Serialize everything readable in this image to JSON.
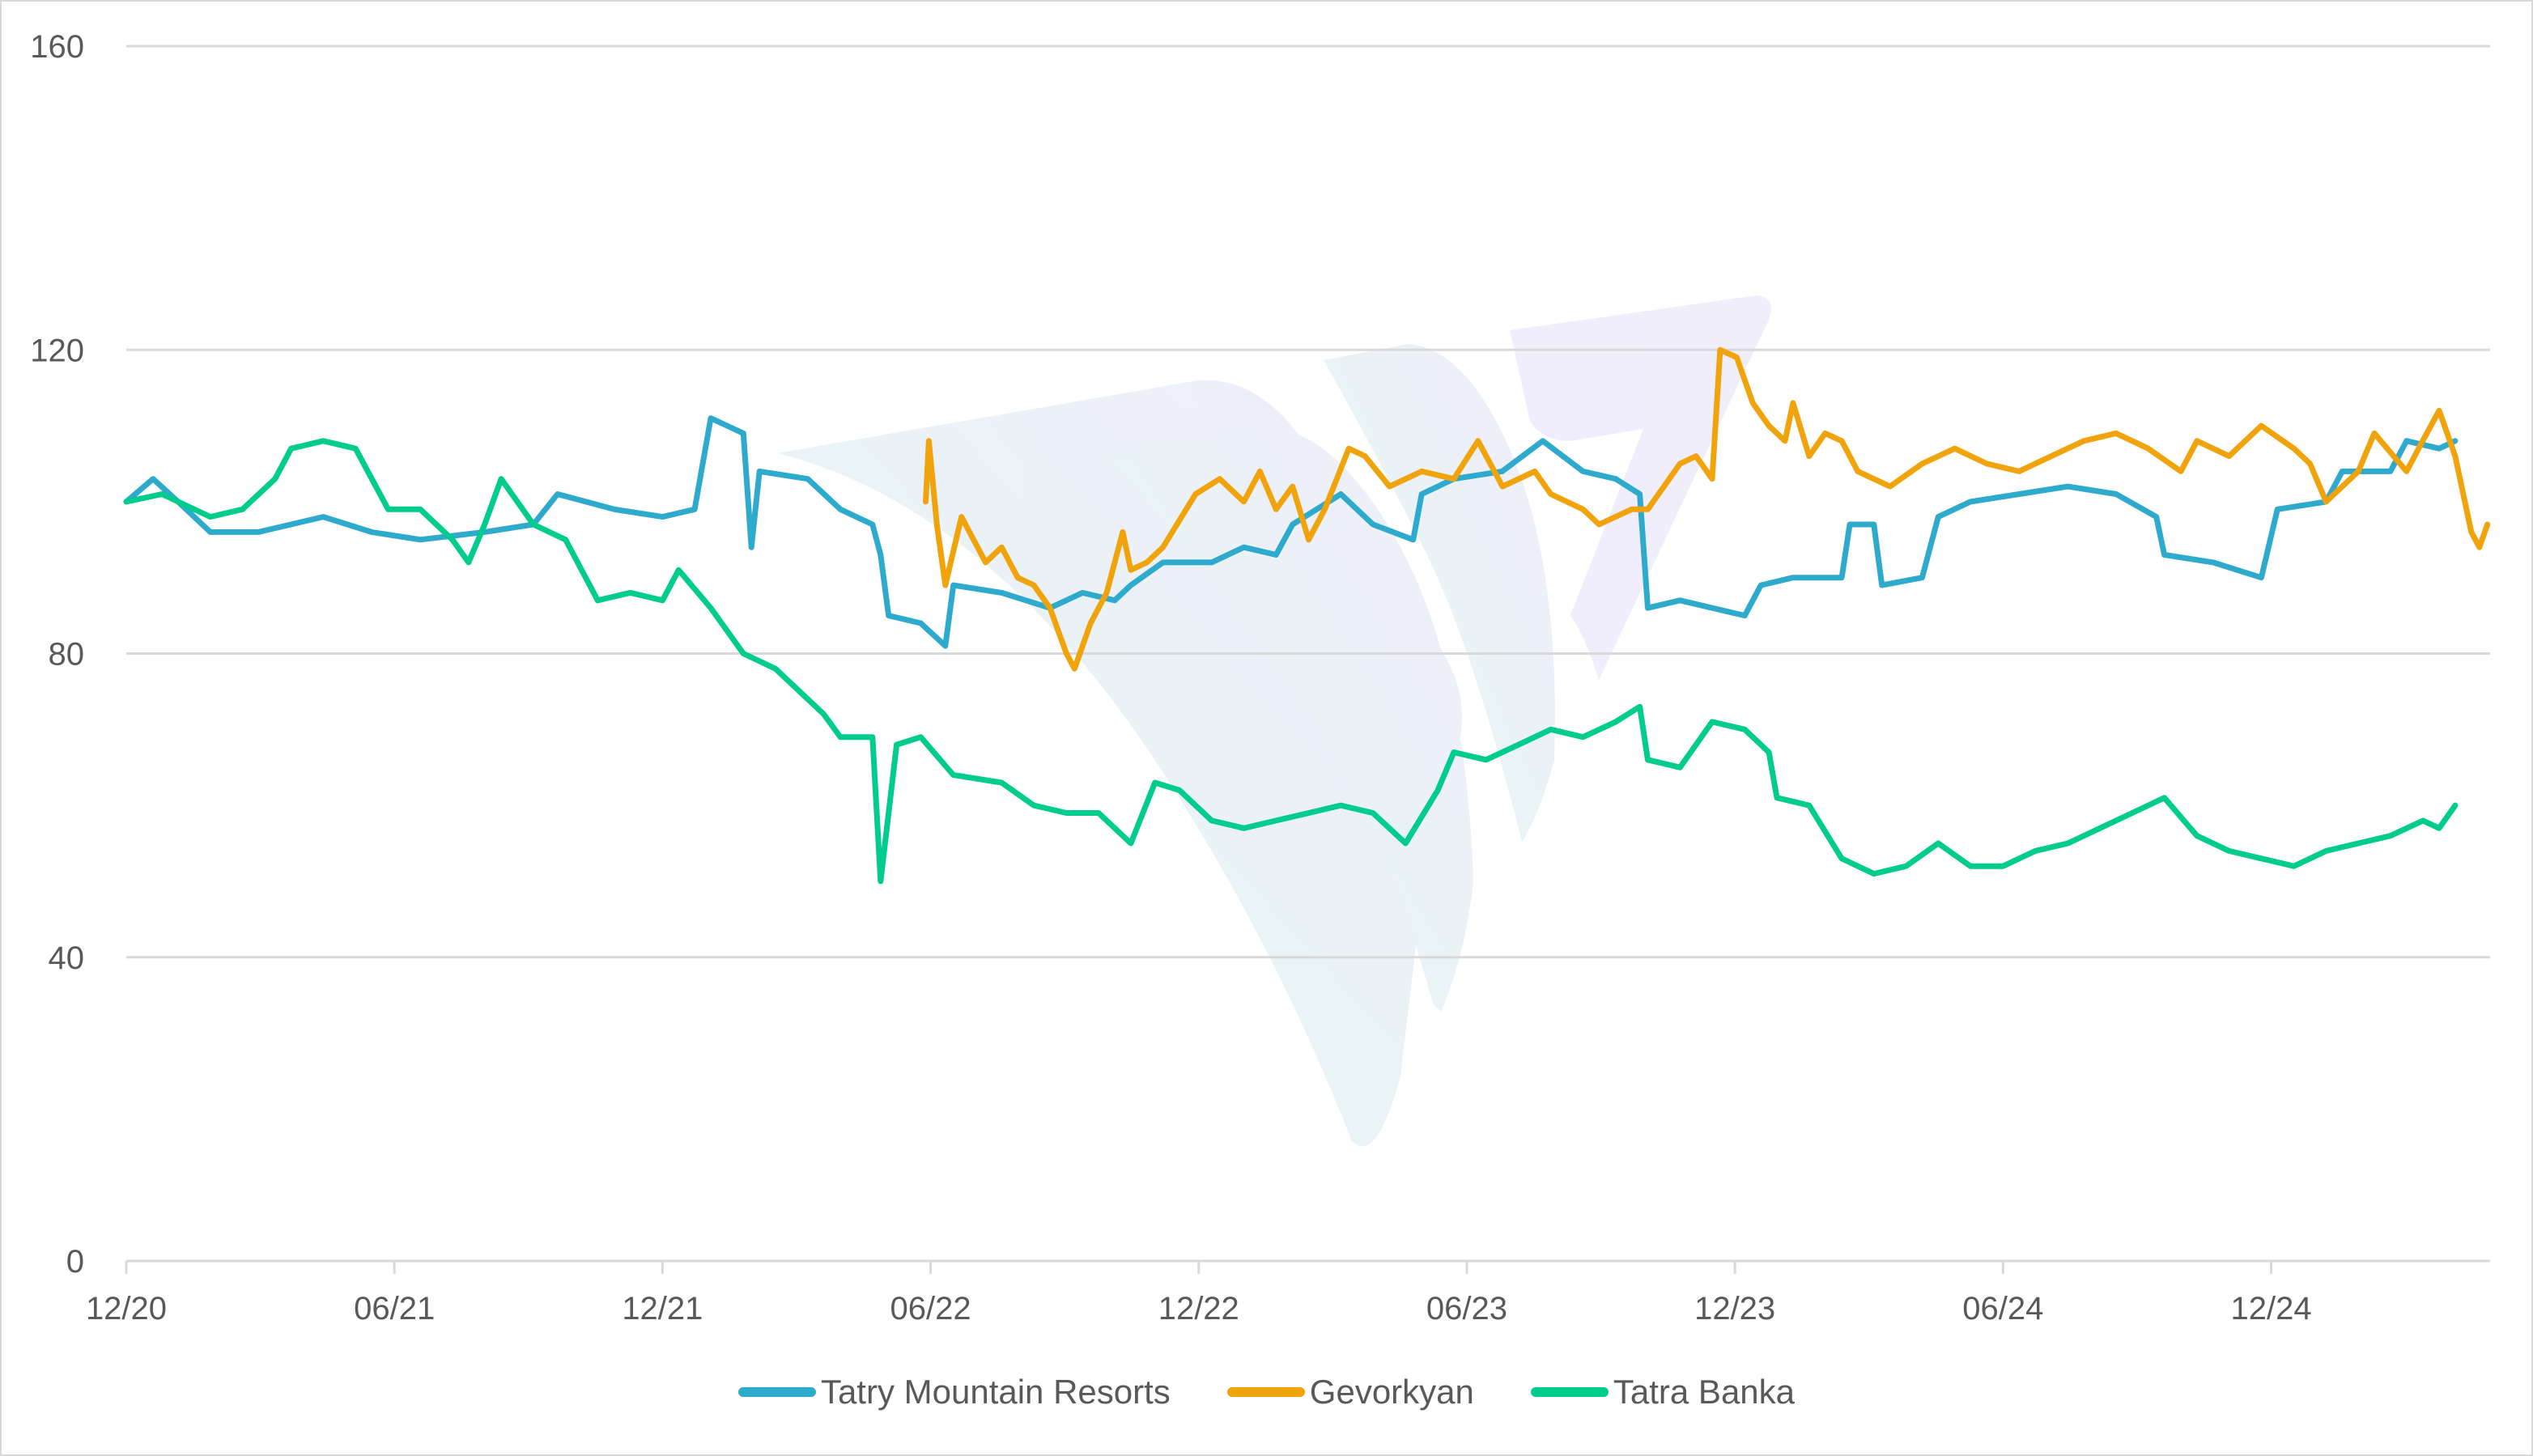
{
  "chart_data": {
    "type": "line",
    "title": "",
    "xlabel": "",
    "ylabel": "",
    "ylim": [
      0,
      160
    ],
    "yticks": [
      "0",
      "40",
      "80",
      "120",
      "160"
    ],
    "ytick_values": [
      0,
      40,
      80,
      120,
      160
    ],
    "x_unit": "months since 12/20",
    "xlim": [
      0,
      52.9
    ],
    "xtick_labels": [
      "12/20",
      "06/21",
      "12/21",
      "06/22",
      "12/22",
      "06/23",
      "12/23",
      "06/24",
      "12/24"
    ],
    "xtick_values": [
      0,
      6,
      12,
      18,
      24,
      30,
      36,
      42,
      48
    ],
    "grid": true,
    "legend_position": "bottom",
    "series": [
      {
        "name": "Tatry Mountain Resorts",
        "color": "#2eaacd",
        "x": [
          0,
          0.6,
          1.16,
          1.88,
          2.96,
          4.41,
          5.49,
          6.58,
          8.02,
          9.11,
          9.65,
          10.92,
          12.0,
          12.72,
          13.08,
          13.81,
          13.99,
          14.17,
          15.25,
          15.98,
          16.7,
          16.88,
          17.06,
          17.78,
          18.33,
          18.51,
          19.59,
          20.67,
          21.4,
          22.12,
          22.48,
          23.2,
          24.29,
          25.01,
          25.73,
          26.1,
          27.18,
          27.9,
          28.8,
          28.99,
          29.71,
          30.79,
          31.7,
          32.6,
          33.33,
          33.87,
          34.05,
          34.77,
          35.49,
          36.22,
          36.58,
          37.3,
          38.39,
          38.57,
          39.11,
          39.29,
          40.19,
          40.55,
          41.27,
          42.36,
          43.45,
          44.53,
          45.43,
          45.61,
          46.7,
          47.78,
          48.14,
          49.23,
          49.59,
          50.67,
          51.03,
          51.76,
          52.12
        ],
        "values": [
          100,
          103,
          100,
          96,
          96,
          98,
          96,
          95,
          96,
          97,
          101,
          99,
          98,
          99,
          111,
          109,
          94,
          104,
          103,
          99,
          97,
          93,
          85,
          84,
          81,
          89,
          88,
          86,
          88,
          87,
          89,
          92,
          92,
          94,
          93,
          97,
          101,
          97,
          95,
          101,
          103,
          104,
          108,
          104,
          103,
          101,
          86,
          87,
          86,
          85,
          89,
          90,
          90,
          97,
          97,
          89,
          90,
          98,
          100,
          101,
          102,
          101,
          98,
          93,
          92,
          90,
          99,
          100,
          104,
          104,
          108,
          107,
          108
        ]
      },
      {
        "name": "Gevorkyan",
        "color": "#f0a30a",
        "x": [
          17.89,
          17.96,
          18.14,
          18.33,
          18.69,
          19.23,
          19.59,
          19.95,
          20.31,
          20.67,
          21.04,
          21.22,
          21.58,
          21.94,
          22.3,
          22.48,
          22.84,
          23.2,
          23.93,
          24.47,
          25.01,
          25.37,
          25.73,
          26.1,
          26.46,
          26.82,
          27.36,
          27.72,
          28.27,
          28.99,
          29.71,
          30.25,
          30.8,
          31.52,
          31.88,
          32.6,
          32.96,
          33.69,
          34.05,
          34.41,
          34.77,
          35.13,
          35.49,
          35.67,
          36.04,
          36.4,
          36.76,
          37.12,
          37.3,
          37.66,
          38.02,
          38.39,
          38.75,
          39.47,
          40.19,
          40.92,
          41.64,
          42.36,
          43.08,
          43.81,
          44.53,
          45.25,
          45.98,
          46.34,
          47.06,
          47.78,
          48.51,
          48.87,
          49.23,
          49.95,
          50.31,
          51.03,
          51.39,
          51.76,
          52.12,
          52.48,
          52.66,
          52.84
        ],
        "values": [
          100,
          108,
          97,
          89,
          98,
          92,
          94,
          90,
          89,
          86,
          80,
          78,
          84,
          88,
          96,
          91,
          92,
          94,
          101,
          103,
          100,
          104,
          99,
          102,
          95,
          99,
          107,
          106,
          102,
          104,
          103,
          108,
          102,
          104,
          101,
          99,
          97,
          99,
          99,
          102,
          105,
          106,
          103,
          120,
          119,
          113,
          110,
          108,
          113,
          106,
          109,
          108,
          104,
          102,
          105,
          107,
          105,
          104,
          106,
          108,
          109,
          107,
          104,
          108,
          106,
          110,
          107,
          105,
          100,
          104,
          109,
          104,
          108,
          112,
          106,
          96,
          94,
          97
        ]
      },
      {
        "name": "Tatra Banka",
        "color": "#00cc8e",
        "x": [
          0,
          0.8,
          1.88,
          2.6,
          3.33,
          3.69,
          4.41,
          5.13,
          5.86,
          6.58,
          7.3,
          7.66,
          8.02,
          8.39,
          9.11,
          9.83,
          10.55,
          11.28,
          12.0,
          12.36,
          13.08,
          13.81,
          14.53,
          15.25,
          15.61,
          15.98,
          16.7,
          16.88,
          17.24,
          17.78,
          18.51,
          19.59,
          20.31,
          21.04,
          21.76,
          22.48,
          23.02,
          23.57,
          24.29,
          25.01,
          25.73,
          26.46,
          27.18,
          27.9,
          28.63,
          29.35,
          29.71,
          30.43,
          31.16,
          31.88,
          32.6,
          33.33,
          33.87,
          34.05,
          34.77,
          35.49,
          36.22,
          36.76,
          36.94,
          37.66,
          38.39,
          39.11,
          39.83,
          40.55,
          41.27,
          42.0,
          42.72,
          43.45,
          44.17,
          44.89,
          45.61,
          46.34,
          47.06,
          47.78,
          48.51,
          49.23,
          49.95,
          50.67,
          51.4,
          51.76,
          52.12
        ],
        "values": [
          100,
          101,
          98,
          99,
          103,
          107,
          108,
          107,
          99,
          99,
          95,
          92,
          97,
          103,
          97,
          95,
          87,
          88,
          87,
          91,
          86,
          80,
          78,
          74,
          72,
          69,
          69,
          50,
          68,
          69,
          64,
          63,
          60,
          59,
          59,
          55,
          63,
          62,
          58,
          57,
          58,
          59,
          60,
          59,
          55,
          62,
          67,
          66,
          68,
          70,
          69,
          71,
          73,
          66,
          65,
          71,
          70,
          67,
          61,
          60,
          53,
          51,
          52,
          55,
          52,
          52,
          54,
          55,
          57,
          59,
          61,
          56,
          54,
          53,
          52,
          54,
          55,
          56,
          58,
          57,
          60
        ]
      }
    ]
  },
  "legend": {
    "items": [
      "Tatry Mountain Resorts",
      "Gevorkyan",
      "Tatra Banka"
    ]
  },
  "watermark": {
    "colors": [
      "#dff7ee",
      "#e6e8f8",
      "#ece8fb"
    ]
  }
}
